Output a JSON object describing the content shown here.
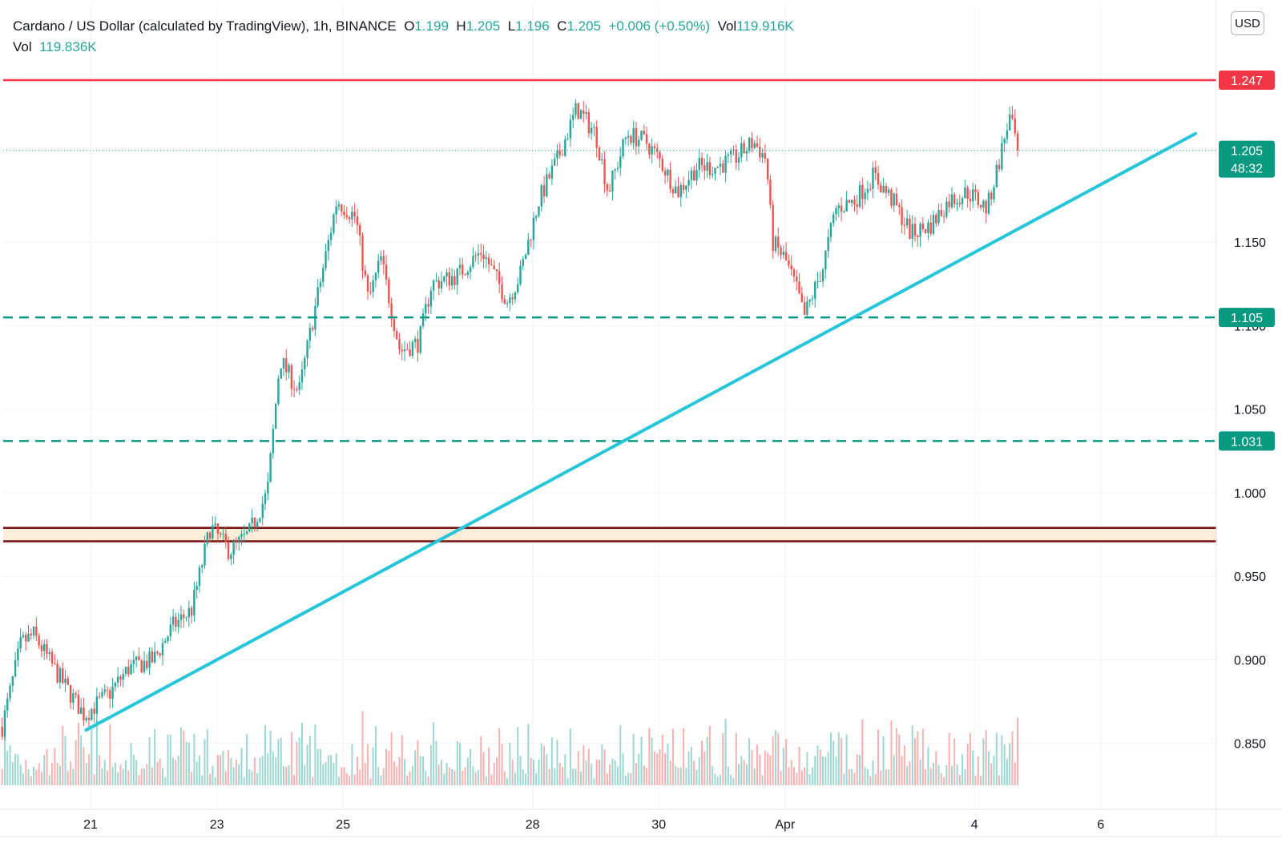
{
  "legend": {
    "symbol": "Cardano / US Dollar (calculated by TradingView), 1h, BINANCE",
    "o_label": "O",
    "o_value": "1.199",
    "h_label": "H",
    "h_value": "1.205",
    "l_label": "L",
    "l_value": "1.196",
    "c_label": "C",
    "c_value": "1.205",
    "change": "+0.006 (+0.50%)",
    "vol_label": "Vol",
    "vol_value": "119.916K",
    "vol2_label": "Vol",
    "vol2_value": "119.836K"
  },
  "currency": "USD",
  "price_tags": {
    "resistance": "1.247",
    "current": "1.205",
    "countdown": "48:32",
    "support1": "1.105",
    "support2": "1.031"
  },
  "colors": {
    "up": "#26a69a",
    "down": "#ef5350",
    "resistance": "#f23645",
    "support": "#089981",
    "trendline": "#26c6da",
    "zone_fill": "#fdecd8",
    "zone_border": "#7b1010"
  },
  "chart_data": {
    "type": "candlestick",
    "interval": "1h",
    "y_ticks": [
      0.85,
      0.9,
      0.95,
      1.0,
      1.05,
      1.1,
      1.15
    ],
    "x_ticks": [
      {
        "label": "21",
        "day": 21
      },
      {
        "label": "23",
        "day": 23
      },
      {
        "label": "25",
        "day": 25
      },
      {
        "label": "28",
        "day": 28
      },
      {
        "label": "30",
        "day": 30
      },
      {
        "label": "Apr",
        "day": 32
      },
      {
        "label": "4",
        "day": 35
      },
      {
        "label": "6",
        "day": 37
      }
    ],
    "horizontal_levels": [
      {
        "name": "resistance",
        "value": 1.247,
        "style": "solid"
      },
      {
        "name": "support",
        "value": 1.105,
        "style": "dashed"
      },
      {
        "name": "support",
        "value": 1.031,
        "style": "dashed"
      }
    ],
    "zone": [
      0.971,
      0.979
    ],
    "last_price": 1.205,
    "trendline": [
      {
        "day": 20.93,
        "price": 0.858
      },
      {
        "day": 38.5,
        "price": 1.215
      }
    ],
    "path": [
      [
        19.6,
        0.86
      ],
      [
        19.9,
        0.91
      ],
      [
        20.1,
        0.915
      ],
      [
        20.5,
        0.89
      ],
      [
        20.9,
        0.867
      ],
      [
        21.3,
        0.88
      ],
      [
        21.6,
        0.895
      ],
      [
        22.0,
        0.9
      ],
      [
        22.3,
        0.92
      ],
      [
        22.6,
        0.93
      ],
      [
        22.9,
        0.98
      ],
      [
        23.2,
        0.965
      ],
      [
        23.5,
        0.975
      ],
      [
        23.8,
        1.0
      ],
      [
        24.0,
        1.08
      ],
      [
        24.3,
        1.06
      ],
      [
        24.5,
        1.1
      ],
      [
        24.9,
        1.175
      ],
      [
        25.2,
        1.165
      ],
      [
        25.4,
        1.115
      ],
      [
        25.6,
        1.14
      ],
      [
        25.9,
        1.085
      ],
      [
        26.2,
        1.09
      ],
      [
        26.4,
        1.125
      ],
      [
        26.8,
        1.13
      ],
      [
        27.2,
        1.145
      ],
      [
        27.6,
        1.115
      ],
      [
        27.8,
        1.13
      ],
      [
        28.1,
        1.175
      ],
      [
        28.4,
        1.2
      ],
      [
        28.7,
        1.23
      ],
      [
        29.0,
        1.215
      ],
      [
        29.2,
        1.18
      ],
      [
        29.5,
        1.215
      ],
      [
        29.8,
        1.21
      ],
      [
        30.0,
        1.2
      ],
      [
        30.3,
        1.18
      ],
      [
        30.6,
        1.195
      ],
      [
        30.9,
        1.195
      ],
      [
        31.2,
        1.2
      ],
      [
        31.5,
        1.21
      ],
      [
        31.7,
        1.2
      ],
      [
        31.8,
        1.15
      ],
      [
        32.0,
        1.14
      ],
      [
        32.2,
        1.12
      ],
      [
        32.3,
        1.105
      ],
      [
        32.6,
        1.135
      ],
      [
        32.8,
        1.17
      ],
      [
        33.1,
        1.175
      ],
      [
        33.4,
        1.19
      ],
      [
        33.7,
        1.175
      ],
      [
        34.0,
        1.155
      ],
      [
        34.3,
        1.16
      ],
      [
        34.6,
        1.175
      ],
      [
        34.9,
        1.18
      ],
      [
        35.2,
        1.17
      ],
      [
        35.4,
        1.2
      ],
      [
        35.55,
        1.225
      ],
      [
        35.7,
        1.205
      ]
    ],
    "volume_scale_note": "relative"
  }
}
